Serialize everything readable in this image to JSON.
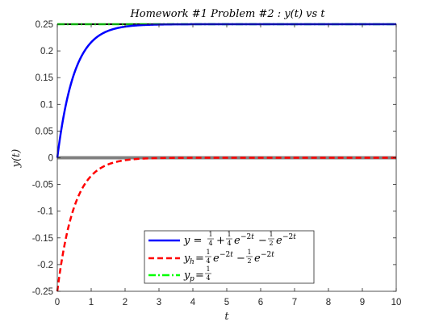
{
  "chart_data": {
    "type": "line",
    "title": "Homework #1 Problem #2 :  y(t)  vs  t",
    "xlabel": "t",
    "ylabel": "y(t)",
    "xlim": [
      0,
      10
    ],
    "ylim": [
      -0.25,
      0.25
    ],
    "xticks": [
      0,
      1,
      2,
      3,
      4,
      5,
      6,
      7,
      8,
      9,
      10
    ],
    "yticks": [
      -0.25,
      -0.2,
      -0.15,
      -0.1,
      -0.05,
      0,
      0.05,
      0.1,
      0.15,
      0.2,
      0.25
    ],
    "ytick_labels": [
      "-0.25",
      "-0.2",
      "-0.15",
      "-0.1",
      "-0.05",
      "0",
      "0.05",
      "0.1",
      "0.15",
      "0.2",
      "0.25"
    ],
    "grid": false,
    "legend_position": "bottom-center",
    "series": [
      {
        "key": "y",
        "name": "y = 1/4 + 1/4 e^{-2t} - 1/2 e^{-2t}",
        "color": "#0000ff",
        "style": "solid"
      },
      {
        "key": "yh",
        "name": "y_h = 1/4 e^{-2t} - 1/2 e^{-2t}",
        "color": "#ff0000",
        "style": "dashed"
      },
      {
        "key": "yp",
        "name": "y_p = 1/4",
        "color": "#00ff00",
        "style": "dashdot"
      }
    ],
    "reference_lines": [
      {
        "orientation": "horizontal",
        "y": 0,
        "color": "#808080"
      },
      {
        "orientation": "horizontal",
        "y": 0.25,
        "color": "#000000"
      }
    ]
  }
}
